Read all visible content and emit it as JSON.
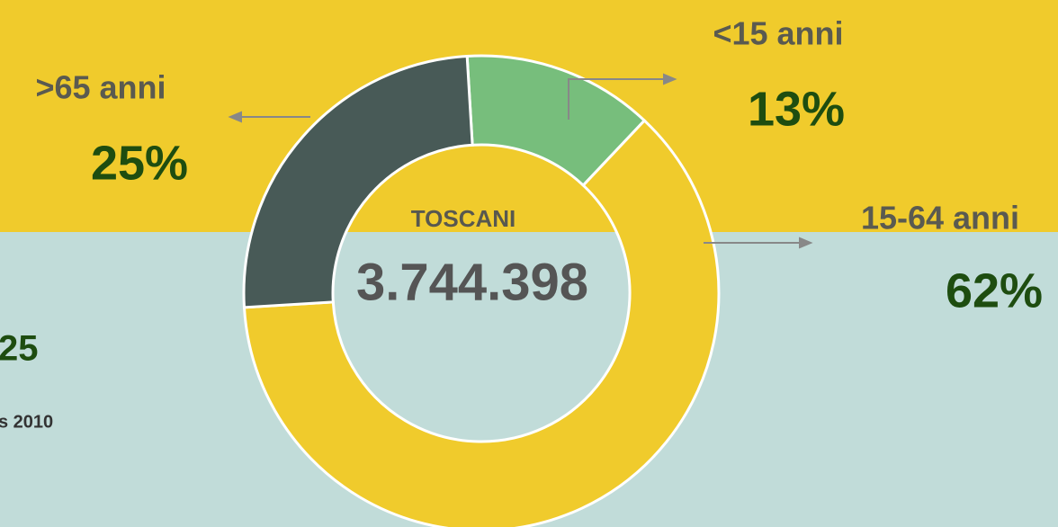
{
  "chart_data": {
    "type": "donut",
    "center_title": "TOSCANI",
    "center_value": "3.744.398",
    "categories": [
      "<15 anni",
      "15-64 anni",
      ">65 anni"
    ],
    "values": [
      13,
      62,
      25
    ],
    "value_labels": [
      "13%",
      "62%",
      "25%"
    ],
    "colors": [
      "#77be7c",
      "#f0cb2c",
      "#485a57"
    ],
    "annotations": [
      "25",
      "s 2010"
    ]
  }
}
